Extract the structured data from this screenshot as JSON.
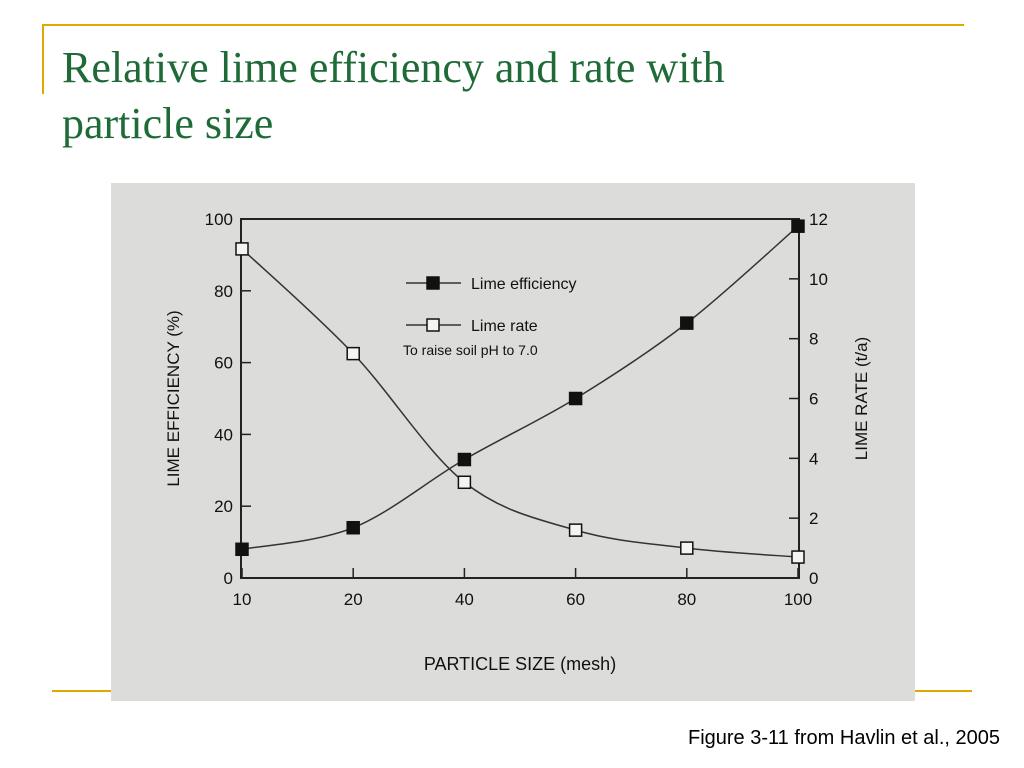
{
  "slide": {
    "title_line1": "Relative lime efficiency and rate with",
    "title_line2": "particle size",
    "caption": "Figure 3-11 from Havlin et al., 2005",
    "accent_color": "#e0a800",
    "title_color": "#1e6b38"
  },
  "chart_data": {
    "type": "line",
    "categories": [
      "10",
      "20",
      "40",
      "60",
      "80",
      "100"
    ],
    "xlabel": "PARTICLE SIZE (mesh)",
    "ylabel_left": "LIME EFFICIENCY (%)",
    "ylabel_right": "LIME RATE (t/a)",
    "ylim_left": [
      0,
      100
    ],
    "ylim_right": [
      0,
      12
    ],
    "yticks_left": [
      0,
      20,
      40,
      60,
      80,
      100
    ],
    "yticks_right": [
      0,
      2,
      4,
      6,
      8,
      10,
      12
    ],
    "annotation": "To raise soil pH to 7.0",
    "legend_position": "top-center",
    "grid": false,
    "series": [
      {
        "name": "Lime efficiency",
        "axis": "left",
        "marker": "filled-square",
        "values": [
          8,
          14,
          33,
          50,
          71,
          98
        ]
      },
      {
        "name": "Lime rate",
        "axis": "right",
        "marker": "open-square",
        "values": [
          11.0,
          7.5,
          3.2,
          1.6,
          1.0,
          0.7
        ]
      }
    ]
  }
}
